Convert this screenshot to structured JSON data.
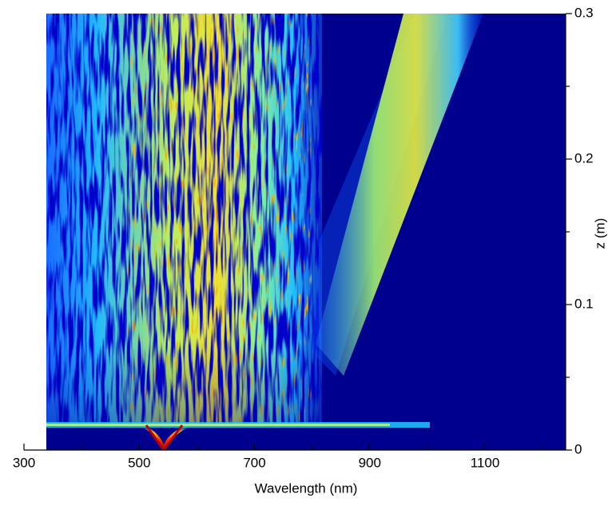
{
  "chart_data": {
    "type": "heatmap",
    "xlabel": "Wavelength (nm)",
    "ylabel": "z (m)",
    "xlim": [
      300,
      1240
    ],
    "xticks": [
      300,
      500,
      700,
      900,
      1100
    ],
    "xminorticks": [
      400,
      600,
      800,
      1000,
      1200
    ],
    "ylim": [
      0,
      0.3
    ],
    "yticks": [
      0,
      0.1,
      0.2,
      0.3
    ],
    "yminorticks": [
      0.05,
      0.15,
      0.25
    ],
    "y_axis_side": "right",
    "colormap": "jet"
  }
}
